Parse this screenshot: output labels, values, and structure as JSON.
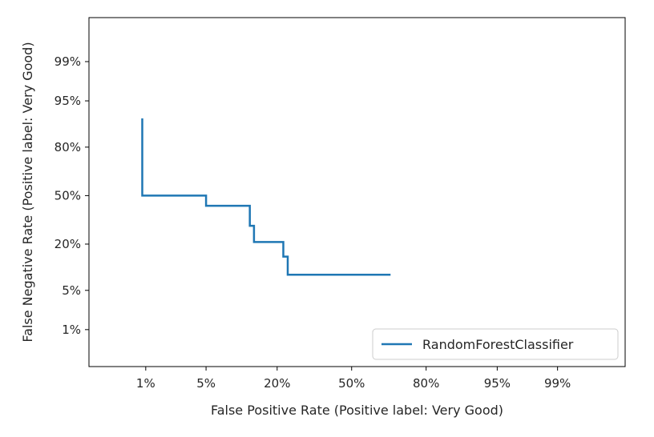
{
  "chart_data": {
    "type": "line",
    "title": "",
    "xlabel": "False Positive Rate (Positive label: Very Good)",
    "ylabel": "False Negative Rate (Positive label: Very Good)",
    "scale": "probit",
    "xlim": [
      0.0015,
      0.999
    ],
    "ylim": [
      0.0015,
      0.999
    ],
    "grid": false,
    "ticks": [
      {
        "value": 0.01,
        "label": "1%"
      },
      {
        "value": 0.05,
        "label": "5%"
      },
      {
        "value": 0.2,
        "label": "20%"
      },
      {
        "value": 0.5,
        "label": "50%"
      },
      {
        "value": 0.8,
        "label": "80%"
      },
      {
        "value": 0.95,
        "label": "95%"
      },
      {
        "value": 0.99,
        "label": "99%"
      }
    ],
    "legend": {
      "position": "bottom-right"
    },
    "series": [
      {
        "name": "RandomForestClassifier",
        "color": "#1f77b4",
        "points": [
          {
            "x": 0.009,
            "y": 0.91
          },
          {
            "x": 0.009,
            "y": 0.5
          },
          {
            "x": 0.05,
            "y": 0.5
          },
          {
            "x": 0.05,
            "y": 0.43
          },
          {
            "x": 0.125,
            "y": 0.43
          },
          {
            "x": 0.125,
            "y": 0.3
          },
          {
            "x": 0.135,
            "y": 0.3
          },
          {
            "x": 0.135,
            "y": 0.21
          },
          {
            "x": 0.22,
            "y": 0.21
          },
          {
            "x": 0.22,
            "y": 0.145
          },
          {
            "x": 0.235,
            "y": 0.145
          },
          {
            "x": 0.235,
            "y": 0.085
          },
          {
            "x": 0.67,
            "y": 0.085
          }
        ]
      }
    ]
  }
}
